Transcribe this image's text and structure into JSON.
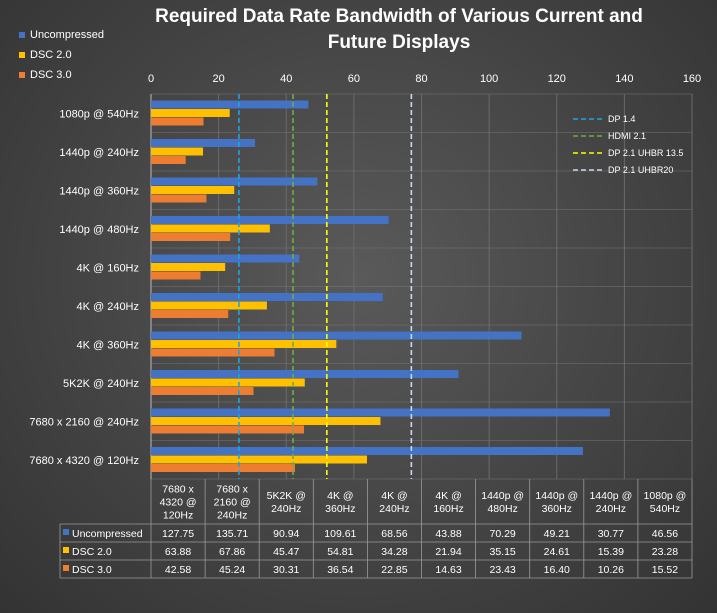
{
  "chart_data": {
    "type": "bar",
    "orientation": "horizontal",
    "title": "Required Data Rate Bandwidth of Various Current and Future Displays",
    "title_lines": [
      "Required Data Rate Bandwidth of Various Current and",
      "Future Displays"
    ],
    "categories": [
      "1080p @ 540Hz",
      "1440p @ 240Hz",
      "1440p @ 360Hz",
      "1440p @ 480Hz",
      "4K @ 160Hz",
      "4K @ 240Hz",
      "4K @ 360Hz",
      "5K2K @ 240Hz",
      "7680 x 2160 @ 240Hz",
      "7680 x 4320 @ 120Hz"
    ],
    "series": [
      {
        "name": "Uncompressed",
        "color": "#4472c4",
        "values": [
          46.56,
          30.77,
          49.21,
          70.29,
          43.88,
          68.56,
          109.61,
          90.94,
          135.71,
          127.75
        ]
      },
      {
        "name": "DSC 2.0",
        "color": "#ffc000",
        "values": [
          23.28,
          15.39,
          24.61,
          35.15,
          21.94,
          34.28,
          54.81,
          45.47,
          67.86,
          63.88
        ]
      },
      {
        "name": "DSC 3.0",
        "color": "#ed7d31",
        "values": [
          15.52,
          10.26,
          16.4,
          23.43,
          14.63,
          22.85,
          36.54,
          30.31,
          45.24,
          42.58
        ]
      }
    ],
    "reference_lines": [
      {
        "name": "DP 1.4",
        "value": 26,
        "color": "#1fa3e0"
      },
      {
        "name": "HDMI 2.1",
        "value": 42,
        "color": "#70ad47"
      },
      {
        "name": "DP 2.1 UHBR 13.5",
        "value": 52,
        "color": "#ffff00"
      },
      {
        "name": "DP 2.1 UHBR20",
        "value": 77,
        "color": "#c9d7f2"
      }
    ],
    "xlim": [
      0,
      160
    ],
    "xticks": [
      0,
      20,
      40,
      60,
      80,
      100,
      120,
      140,
      160
    ],
    "grid": true,
    "legend_position": "top-left",
    "table": {
      "columns": [
        "7680 x 4320 @ 120Hz",
        "7680 x 2160 @ 240Hz",
        "5K2K @ 240Hz",
        "4K @ 360Hz",
        "4K @ 240Hz",
        "4K @ 160Hz",
        "1440p @ 480Hz",
        "1440p @ 360Hz",
        "1440p @ 240Hz",
        "1080p @ 540Hz"
      ],
      "column_lines": [
        [
          "7680 x",
          "4320 @",
          "120Hz"
        ],
        [
          "7680 x",
          "2160 @",
          "240Hz"
        ],
        [
          "5K2K @",
          "240Hz"
        ],
        [
          "4K @",
          "360Hz"
        ],
        [
          "4K @",
          "240Hz"
        ],
        [
          "4K @",
          "160Hz"
        ],
        [
          "1440p @",
          "480Hz"
        ],
        [
          "1440p @",
          "360Hz"
        ],
        [
          "1440p @",
          "240Hz"
        ],
        [
          "1080p @",
          "540Hz"
        ]
      ],
      "rows": [
        {
          "name": "Uncompressed",
          "color": "#4472c4",
          "values": [
            "127.75",
            "135.71",
            "90.94",
            "109.61",
            "68.56",
            "43.88",
            "70.29",
            "49.21",
            "30.77",
            "46.56"
          ]
        },
        {
          "name": "DSC 2.0",
          "color": "#ffc000",
          "values": [
            "63.88",
            "67.86",
            "45.47",
            "54.81",
            "34.28",
            "21.94",
            "35.15",
            "24.61",
            "15.39",
            "23.28"
          ]
        },
        {
          "name": "DSC 3.0",
          "color": "#ed7d31",
          "values": [
            "42.58",
            "45.24",
            "30.31",
            "36.54",
            "22.85",
            "14.63",
            "23.43",
            "16.40",
            "10.26",
            "15.52"
          ]
        }
      ]
    }
  }
}
